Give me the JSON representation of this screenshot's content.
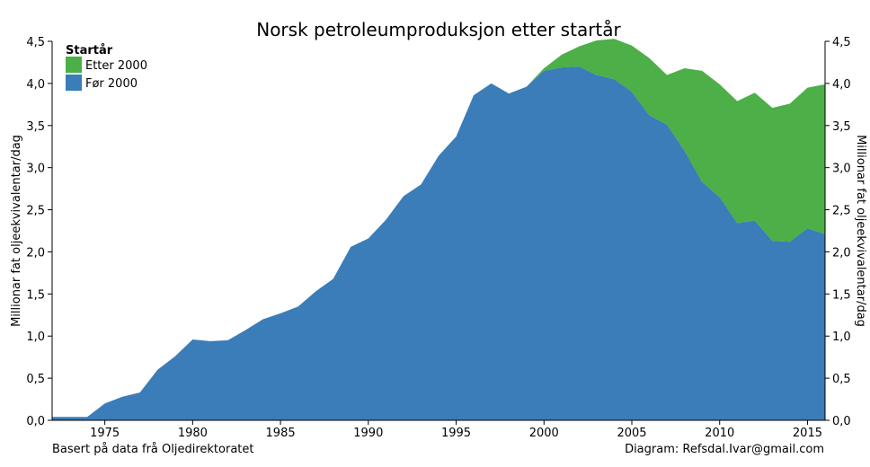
{
  "chart_data": {
    "type": "area",
    "stacked": true,
    "title": "Norsk petroleumproduksjon etter startår",
    "xlabel": "",
    "ylabel": "Millionar fat oljeekvivalentar/dag",
    "ylabel_right": "Millionar fat oljeekvivalentar/dag",
    "xlim": [
      1972,
      2016
    ],
    "ylim": [
      0,
      4.5
    ],
    "x_ticks": [
      1975,
      1980,
      1985,
      1990,
      1995,
      2000,
      2005,
      2010,
      2015
    ],
    "y_ticks": [
      "0,0",
      "0,5",
      "1,0",
      "1,5",
      "2,0",
      "2,5",
      "3,0",
      "3,5",
      "4,0",
      "4,5"
    ],
    "y_tick_values": [
      0,
      0.5,
      1.0,
      1.5,
      2.0,
      2.5,
      3.0,
      3.5,
      4.0,
      4.5
    ],
    "grid": false,
    "legend": {
      "title": "Startår",
      "placement": "top-left"
    },
    "x": [
      1972,
      1973,
      1974,
      1975,
      1976,
      1977,
      1978,
      1979,
      1980,
      1981,
      1982,
      1983,
      1984,
      1985,
      1986,
      1987,
      1988,
      1989,
      1990,
      1991,
      1992,
      1993,
      1994,
      1995,
      1996,
      1997,
      1998,
      1999,
      2000,
      2001,
      2002,
      2003,
      2004,
      2005,
      2006,
      2007,
      2008,
      2009,
      2010,
      2011,
      2012,
      2013,
      2014,
      2015,
      2016
    ],
    "series": [
      {
        "name": "Før 2000",
        "color": "#3a7db8",
        "values": [
          0.04,
          0.04,
          0.04,
          0.2,
          0.28,
          0.33,
          0.6,
          0.76,
          0.96,
          0.94,
          0.95,
          1.07,
          1.2,
          1.27,
          1.35,
          1.53,
          1.68,
          2.06,
          2.16,
          2.38,
          2.66,
          2.8,
          3.14,
          3.37,
          3.86,
          4.0,
          3.88,
          3.96,
          4.15,
          4.19,
          4.2,
          4.1,
          4.05,
          3.9,
          3.62,
          3.51,
          3.2,
          2.83,
          2.65,
          2.34,
          2.37,
          2.13,
          2.12,
          2.28,
          2.21
        ]
      },
      {
        "name": "Etter 2000",
        "color": "#4caf47",
        "values": [
          0,
          0,
          0,
          0,
          0,
          0,
          0,
          0,
          0,
          0,
          0,
          0,
          0,
          0,
          0,
          0,
          0,
          0,
          0,
          0,
          0,
          0,
          0,
          0,
          0,
          0,
          0,
          0,
          0.03,
          0.15,
          0.24,
          0.41,
          0.48,
          0.55,
          0.68,
          0.59,
          0.98,
          1.32,
          1.34,
          1.45,
          1.52,
          1.58,
          1.64,
          1.67,
          1.78
        ]
      }
    ]
  },
  "footer": {
    "source": "Basert på data frå Oljedirektoratet",
    "credit": "Diagram: Refsdal.Ivar@gmail.com"
  }
}
